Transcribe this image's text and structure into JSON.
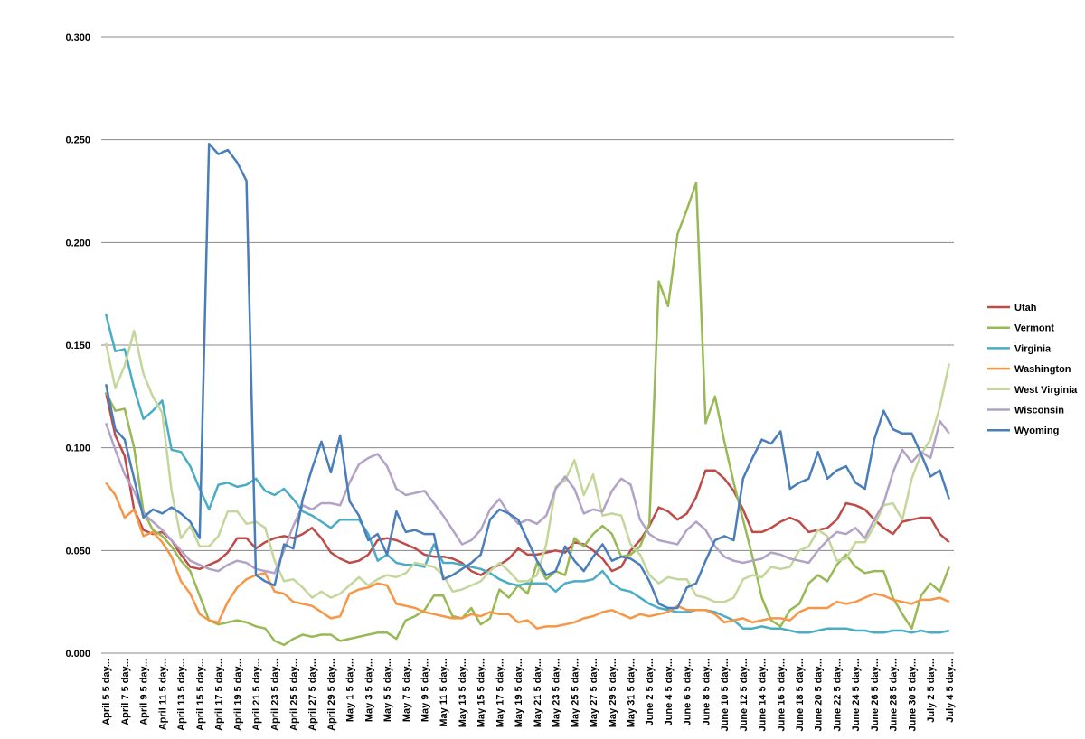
{
  "chart_data": {
    "type": "line",
    "categories": [
      "April 5 5 day...",
      null,
      "April 7 5 day...",
      null,
      "April 9 5 day...",
      null,
      "April 11 5 day...",
      null,
      "April 13 5 day...",
      null,
      "April 15 5 day...",
      null,
      "April 17 5 day...",
      null,
      "April 19 5 day...",
      null,
      "April 21 5 day...",
      null,
      "April 23 5 day...",
      null,
      "April 25 5 day...",
      null,
      "April 27 5 day...",
      null,
      "April 29 5 day...",
      null,
      "May 1 5 day...",
      null,
      "May 3 5 day...",
      null,
      "May 5 5 day...",
      null,
      "May 7 5 day...",
      null,
      "May 9 5 day...",
      null,
      "May 11 5 day...",
      null,
      "May 13 5 day...",
      null,
      "May 15 5 day...",
      null,
      "May 17 5 day...",
      null,
      "May 19 5 day...",
      null,
      "May 21 5 day...",
      null,
      "May 23 5 day...",
      null,
      "May 25 5 day...",
      null,
      "May 27 5 day...",
      null,
      "May 29 5 day...",
      null,
      "May 31 5 day...",
      null,
      "June 2 5 day...",
      null,
      "June 4 5 day...",
      null,
      "June 6 5 day...",
      null,
      "June 8 5 day...",
      null,
      "June 10 5 day...",
      null,
      "June 12 5 day...",
      null,
      "June 14 5 day...",
      null,
      "June 16 5 day...",
      null,
      "June 18 5 day...",
      null,
      "June 20 5 day...",
      null,
      "June 22 5 day...",
      null,
      "June 24 5 day...",
      null,
      "June 26 5 day...",
      null,
      "June 28 5 day...",
      null,
      "June 30 5 day...",
      null,
      "July 2 5 day...",
      null,
      "July 4 5 day..."
    ],
    "series": [
      {
        "name": "Utah",
        "color": "#be4b48",
        "values": [
          0.127,
          0.106,
          0.096,
          0.07,
          0.06,
          0.058,
          0.059,
          0.055,
          0.048,
          0.042,
          0.041,
          0.043,
          0.045,
          0.049,
          0.056,
          0.056,
          0.051,
          0.054,
          0.056,
          0.057,
          0.056,
          0.058,
          0.061,
          0.056,
          0.049,
          0.046,
          0.044,
          0.045,
          0.048,
          0.055,
          0.056,
          0.055,
          0.053,
          0.051,
          0.048,
          0.047,
          0.047,
          0.046,
          0.044,
          0.04,
          0.038,
          0.041,
          0.043,
          0.046,
          0.051,
          0.048,
          0.048,
          0.049,
          0.05,
          0.049,
          0.054,
          0.053,
          0.05,
          0.046,
          0.04,
          0.042,
          0.05,
          0.055,
          0.062,
          0.071,
          0.069,
          0.065,
          0.068,
          0.076,
          0.089,
          0.089,
          0.085,
          0.079,
          0.07,
          0.059,
          0.059,
          0.061,
          0.064,
          0.066,
          0.064,
          0.059,
          0.06,
          0.061,
          0.065,
          0.073,
          0.072,
          0.07,
          0.065,
          0.061,
          0.058,
          0.064,
          0.065,
          0.066,
          0.066,
          0.058,
          0.054
        ]
      },
      {
        "name": "Vermont",
        "color": "#98b954",
        "values": [
          0.127,
          0.118,
          0.119,
          0.1,
          0.069,
          0.06,
          0.057,
          0.052,
          0.045,
          0.04,
          0.028,
          0.016,
          0.014,
          0.015,
          0.016,
          0.015,
          0.013,
          0.012,
          0.006,
          0.004,
          0.007,
          0.009,
          0.008,
          0.009,
          0.009,
          0.006,
          0.007,
          0.008,
          0.009,
          0.01,
          0.01,
          0.007,
          0.016,
          0.018,
          0.021,
          0.028,
          0.028,
          0.018,
          0.017,
          0.022,
          0.014,
          0.017,
          0.031,
          0.027,
          0.033,
          0.029,
          0.044,
          0.036,
          0.04,
          0.038,
          0.056,
          0.052,
          0.058,
          0.062,
          0.058,
          0.047,
          0.048,
          0.052,
          0.063,
          0.181,
          0.169,
          0.204,
          0.216,
          0.229,
          0.112,
          0.125,
          0.103,
          0.083,
          0.065,
          0.047,
          0.027,
          0.016,
          0.013,
          0.021,
          0.024,
          0.034,
          0.038,
          0.035,
          0.043,
          0.048,
          0.042,
          0.039,
          0.04,
          0.04,
          0.027,
          0.019,
          0.012,
          0.028,
          0.034,
          0.03,
          0.042
        ]
      },
      {
        "name": "Virginia",
        "color": "#4bacc6",
        "values": [
          0.165,
          0.147,
          0.148,
          0.129,
          0.114,
          0.118,
          0.123,
          0.099,
          0.098,
          0.091,
          0.08,
          0.07,
          0.082,
          0.083,
          0.081,
          0.082,
          0.085,
          0.079,
          0.077,
          0.08,
          0.075,
          0.069,
          0.067,
          0.064,
          0.061,
          0.065,
          0.065,
          0.065,
          0.058,
          0.045,
          0.048,
          0.044,
          0.043,
          0.043,
          0.042,
          0.053,
          0.044,
          0.044,
          0.043,
          0.042,
          0.041,
          0.039,
          0.036,
          0.034,
          0.033,
          0.034,
          0.034,
          0.034,
          0.03,
          0.034,
          0.035,
          0.035,
          0.036,
          0.04,
          0.034,
          0.031,
          0.03,
          0.027,
          0.024,
          0.022,
          0.021,
          0.02,
          0.02,
          0.021,
          0.021,
          0.02,
          0.018,
          0.016,
          0.012,
          0.012,
          0.013,
          0.012,
          0.012,
          0.011,
          0.01,
          0.01,
          0.011,
          0.012,
          0.012,
          0.012,
          0.011,
          0.011,
          0.01,
          0.01,
          0.011,
          0.011,
          0.01,
          0.011,
          0.01,
          0.01,
          0.011
        ]
      },
      {
        "name": "Washington",
        "color": "#f79646",
        "values": [
          0.083,
          0.077,
          0.066,
          0.07,
          0.057,
          0.059,
          0.054,
          0.047,
          0.035,
          0.029,
          0.019,
          0.016,
          0.015,
          0.025,
          0.032,
          0.036,
          0.038,
          0.039,
          0.03,
          0.029,
          0.025,
          0.024,
          0.023,
          0.02,
          0.017,
          0.018,
          0.029,
          0.031,
          0.032,
          0.034,
          0.033,
          0.024,
          0.023,
          0.022,
          0.02,
          0.019,
          0.018,
          0.017,
          0.017,
          0.019,
          0.018,
          0.02,
          0.019,
          0.019,
          0.015,
          0.016,
          0.012,
          0.013,
          0.013,
          0.014,
          0.015,
          0.017,
          0.018,
          0.02,
          0.021,
          0.019,
          0.017,
          0.019,
          0.018,
          0.019,
          0.02,
          0.023,
          0.021,
          0.021,
          0.021,
          0.019,
          0.015,
          0.016,
          0.017,
          0.015,
          0.016,
          0.017,
          0.017,
          0.016,
          0.02,
          0.022,
          0.022,
          0.022,
          0.025,
          0.024,
          0.025,
          0.027,
          0.029,
          0.028,
          0.026,
          0.025,
          0.024,
          0.026,
          0.026,
          0.027,
          0.025
        ]
      },
      {
        "name": "West Virginia",
        "color": "#c4d79b",
        "values": [
          0.151,
          0.129,
          0.14,
          0.157,
          0.136,
          0.125,
          0.117,
          0.079,
          0.056,
          0.062,
          0.052,
          0.052,
          0.057,
          0.069,
          0.069,
          0.063,
          0.064,
          0.061,
          0.045,
          0.035,
          0.036,
          0.032,
          0.027,
          0.03,
          0.027,
          0.029,
          0.033,
          0.037,
          0.033,
          0.036,
          0.038,
          0.037,
          0.039,
          0.044,
          0.043,
          0.042,
          0.038,
          0.03,
          0.031,
          0.033,
          0.035,
          0.04,
          0.044,
          0.04,
          0.035,
          0.035,
          0.038,
          0.053,
          0.081,
          0.084,
          0.094,
          0.077,
          0.087,
          0.067,
          0.068,
          0.067,
          0.053,
          0.048,
          0.038,
          0.034,
          0.037,
          0.036,
          0.036,
          0.028,
          0.027,
          0.025,
          0.025,
          0.027,
          0.036,
          0.038,
          0.037,
          0.042,
          0.041,
          0.042,
          0.05,
          0.052,
          0.06,
          0.057,
          0.045,
          0.046,
          0.054,
          0.054,
          0.062,
          0.072,
          0.073,
          0.065,
          0.085,
          0.097,
          0.104,
          0.12,
          0.141
        ]
      },
      {
        "name": "Wisconsin",
        "color": "#b3a2c7",
        "values": [
          0.112,
          0.099,
          0.087,
          0.079,
          0.068,
          0.064,
          0.06,
          0.055,
          0.05,
          0.045,
          0.043,
          0.041,
          0.04,
          0.043,
          0.045,
          0.044,
          0.041,
          0.04,
          0.039,
          0.05,
          0.062,
          0.072,
          0.07,
          0.073,
          0.073,
          0.072,
          0.083,
          0.092,
          0.095,
          0.097,
          0.091,
          0.08,
          0.077,
          0.078,
          0.079,
          0.073,
          0.067,
          0.06,
          0.053,
          0.055,
          0.06,
          0.07,
          0.075,
          0.068,
          0.063,
          0.065,
          0.063,
          0.067,
          0.08,
          0.086,
          0.08,
          0.068,
          0.07,
          0.069,
          0.079,
          0.085,
          0.082,
          0.065,
          0.058,
          0.055,
          0.054,
          0.053,
          0.06,
          0.064,
          0.06,
          0.052,
          0.047,
          0.045,
          0.044,
          0.045,
          0.046,
          0.049,
          0.048,
          0.046,
          0.045,
          0.044,
          0.05,
          0.055,
          0.059,
          0.058,
          0.061,
          0.056,
          0.065,
          0.073,
          0.088,
          0.099,
          0.093,
          0.098,
          0.095,
          0.113,
          0.107
        ]
      },
      {
        "name": "Wyoming",
        "color": "#4a7ebb",
        "values": [
          0.131,
          0.109,
          0.104,
          0.085,
          0.066,
          0.07,
          0.068,
          0.071,
          0.068,
          0.064,
          0.056,
          0.248,
          0.243,
          0.245,
          0.239,
          0.23,
          0.038,
          0.035,
          0.033,
          0.053,
          0.051,
          0.075,
          0.09,
          0.103,
          0.088,
          0.106,
          0.074,
          0.067,
          0.055,
          0.058,
          0.048,
          0.069,
          0.059,
          0.06,
          0.058,
          0.058,
          0.036,
          0.038,
          0.041,
          0.044,
          0.048,
          0.065,
          0.07,
          0.068,
          0.065,
          0.055,
          0.045,
          0.038,
          0.04,
          0.052,
          0.045,
          0.04,
          0.047,
          0.053,
          0.045,
          0.047,
          0.046,
          0.043,
          0.035,
          0.024,
          0.022,
          0.022,
          0.032,
          0.034,
          0.045,
          0.055,
          0.057,
          0.055,
          0.085,
          0.095,
          0.104,
          0.102,
          0.108,
          0.08,
          0.083,
          0.085,
          0.098,
          0.085,
          0.089,
          0.091,
          0.083,
          0.08,
          0.104,
          0.118,
          0.109,
          0.107,
          0.107,
          0.097,
          0.086,
          0.089,
          0.075
        ]
      }
    ],
    "ylim": [
      0,
      0.3
    ],
    "yticks": [
      {
        "value": 0,
        "label": "0.000"
      },
      {
        "value": 0.05,
        "label": "0.050"
      },
      {
        "value": 0.1,
        "label": "0.100"
      },
      {
        "value": 0.15,
        "label": "0.150"
      },
      {
        "value": 0.2,
        "label": "0.200"
      },
      {
        "value": 0.25,
        "label": "0.250"
      },
      {
        "value": 0.3,
        "label": "0.300"
      }
    ],
    "grid": true,
    "legend": "right"
  }
}
